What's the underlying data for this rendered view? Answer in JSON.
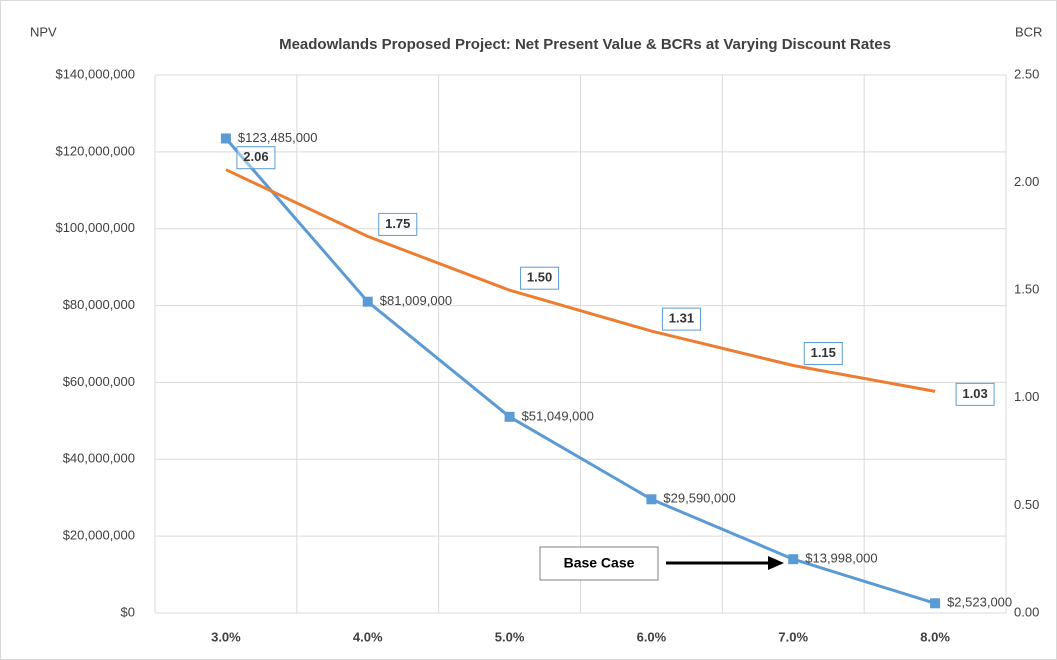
{
  "chart_data": {
    "type": "line",
    "title": "Meadowlands Proposed Project: Net Present Value & BCRs at Varying Discount Rates",
    "y_label": "NPV",
    "y2_label": "BCR",
    "categories": [
      "3.0%",
      "4.0%",
      "5.0%",
      "6.0%",
      "7.0%",
      "8.0%"
    ],
    "series": [
      {
        "name": "NPV",
        "color": "#5b9bd5",
        "values": [
          123485000,
          81009000,
          51049000,
          29590000,
          13998000,
          2523000
        ],
        "value_labels": [
          "$123,485,000",
          "$81,009,000",
          "$51,049,000",
          "$29,590,000",
          "$13,998,000",
          "$2,523,000"
        ]
      },
      {
        "name": "BCR",
        "color": "#ed7d31",
        "axis": "y2",
        "values": [
          2.06,
          1.75,
          1.5,
          1.31,
          1.15,
          1.03
        ],
        "value_labels": [
          "2.06",
          "1.75",
          "1.50",
          "1.31",
          "1.15",
          "1.03"
        ]
      }
    ],
    "ylim": [
      0,
      140000000
    ],
    "yticks": [
      {
        "value": 0,
        "label": "$0"
      },
      {
        "value": 20000000,
        "label": "$20,000,000"
      },
      {
        "value": 40000000,
        "label": "$40,000,000"
      },
      {
        "value": 60000000,
        "label": "$60,000,000"
      },
      {
        "value": 80000000,
        "label": "$80,000,000"
      },
      {
        "value": 100000000,
        "label": "$100,000,000"
      },
      {
        "value": 120000000,
        "label": "$120,000,000"
      },
      {
        "value": 140000000,
        "label": "$140,000,000"
      }
    ],
    "y2lim": [
      0,
      2.5
    ],
    "y2ticks": [
      {
        "value": 0,
        "label": "0.00"
      },
      {
        "value": 0.5,
        "label": "0.50"
      },
      {
        "value": 1,
        "label": "1.00"
      },
      {
        "value": 1.5,
        "label": "1.50"
      },
      {
        "value": 2,
        "label": "2.00"
      },
      {
        "value": 2.5,
        "label": "2.50"
      }
    ],
    "grid": true,
    "annotation": "Base Case"
  }
}
